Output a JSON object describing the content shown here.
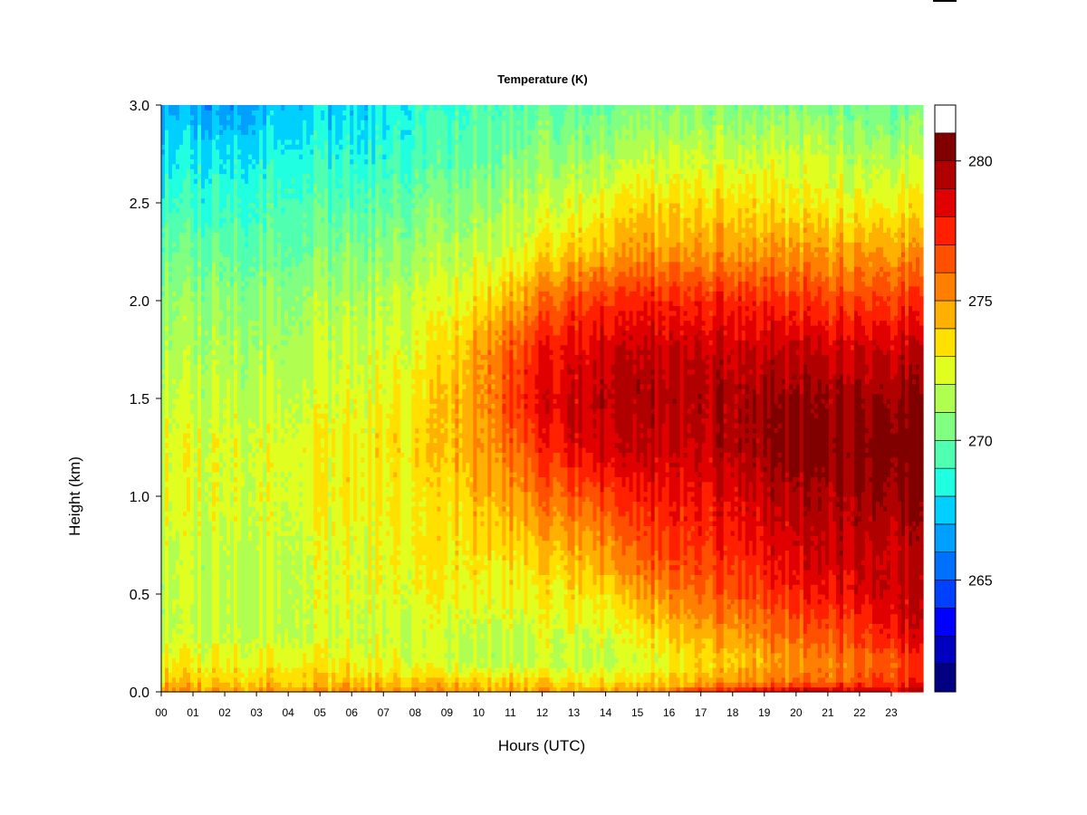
{
  "chart_data": {
    "type": "heatmap",
    "title": "Temperature (K)",
    "xlabel": "Hours (UTC)",
    "ylabel": "Height (km)",
    "x_tick_labels": [
      "00",
      "01",
      "02",
      "03",
      "04",
      "05",
      "06",
      "07",
      "08",
      "09",
      "10",
      "11",
      "12",
      "13",
      "14",
      "15",
      "16",
      "17",
      "18",
      "19",
      "20",
      "21",
      "22",
      "23"
    ],
    "y_tick_labels": [
      "0.0",
      "0.5",
      "1.0",
      "1.5",
      "2.0",
      "2.5",
      "3.0"
    ],
    "y_ticks": [
      0.0,
      0.5,
      1.0,
      1.5,
      2.0,
      2.5,
      3.0
    ],
    "xlim": [
      0,
      24
    ],
    "ylim": [
      0,
      3.0
    ],
    "colorbar": {
      "label_values": [
        265,
        270,
        275,
        280
      ],
      "tick_labels": [
        "265",
        "270",
        "275",
        "280"
      ],
      "range": [
        261,
        282
      ],
      "levels": [
        261,
        262,
        263,
        264,
        265,
        266,
        267,
        268,
        269,
        270,
        271,
        272,
        273,
        274,
        275,
        276,
        277,
        278,
        279,
        280,
        281,
        282
      ],
      "colors": [
        "#000080",
        "#0000c0",
        "#0000ff",
        "#0040ff",
        "#0070ff",
        "#00a0ff",
        "#00d0ff",
        "#20ffe0",
        "#50ffb0",
        "#80ff80",
        "#b0ff50",
        "#e0ff20",
        "#ffe000",
        "#ffb000",
        "#ff8000",
        "#ff5000",
        "#ff2000",
        "#e00000",
        "#b00000",
        "#800000"
      ]
    },
    "heights": [
      0.0,
      0.05,
      0.15,
      0.3,
      0.5,
      0.7,
      1.0,
      1.25,
      1.5,
      1.75,
      2.0,
      2.25,
      2.5,
      2.75,
      3.0
    ],
    "hours": [
      0,
      2,
      4,
      6,
      8,
      9,
      10,
      11,
      12,
      13,
      14,
      15,
      16,
      17,
      18,
      19,
      20,
      21,
      22,
      23,
      24
    ],
    "temperature": [
      [
        275.5,
        274.0,
        273.0,
        272.0,
        272.0,
        272.0,
        272.5,
        272.5,
        272.0,
        271.5,
        271.0,
        270.0,
        269.0,
        268.0,
        267.0
      ],
      [
        275.0,
        274.0,
        273.0,
        272.0,
        272.0,
        272.0,
        272.5,
        272.5,
        272.0,
        271.5,
        271.0,
        270.0,
        269.0,
        268.0,
        266.5
      ],
      [
        275.0,
        274.0,
        273.0,
        272.0,
        272.0,
        272.0,
        272.5,
        272.5,
        272.0,
        271.5,
        271.0,
        270.0,
        269.5,
        268.5,
        267.5
      ],
      [
        275.5,
        274.0,
        273.0,
        272.0,
        272.5,
        272.5,
        273.0,
        273.0,
        272.5,
        272.0,
        271.5,
        270.5,
        269.5,
        268.5,
        267.5
      ],
      [
        275.0,
        274.0,
        272.5,
        272.0,
        272.5,
        273.0,
        273.0,
        273.5,
        273.0,
        272.5,
        272.0,
        271.0,
        270.0,
        269.0,
        268.5
      ],
      [
        275.0,
        274.0,
        272.0,
        272.0,
        273.0,
        273.0,
        273.5,
        274.0,
        274.0,
        273.5,
        272.5,
        271.5,
        270.5,
        269.5,
        269.0
      ],
      [
        275.0,
        274.0,
        272.0,
        272.0,
        273.0,
        273.5,
        274.5,
        275.0,
        275.0,
        275.0,
        273.5,
        272.0,
        271.0,
        270.0,
        269.5
      ],
      [
        275.0,
        274.0,
        272.0,
        272.0,
        273.0,
        273.5,
        275.0,
        276.0,
        277.0,
        276.5,
        274.5,
        272.5,
        271.5,
        270.5,
        269.5
      ],
      [
        275.0,
        274.0,
        272.0,
        272.5,
        273.0,
        274.0,
        276.0,
        277.5,
        278.5,
        278.0,
        276.0,
        273.5,
        272.0,
        271.0,
        270.0
      ],
      [
        275.0,
        273.5,
        272.0,
        272.5,
        273.5,
        274.5,
        276.5,
        278.5,
        279.0,
        278.5,
        277.0,
        274.0,
        272.5,
        271.0,
        270.0
      ],
      [
        275.0,
        273.5,
        272.0,
        272.5,
        273.5,
        275.0,
        277.0,
        279.0,
        279.5,
        279.0,
        277.5,
        274.5,
        273.0,
        271.5,
        270.0
      ],
      [
        275.5,
        273.5,
        272.0,
        273.0,
        274.5,
        276.0,
        277.5,
        279.0,
        279.5,
        279.0,
        277.5,
        275.0,
        273.5,
        271.5,
        270.5
      ],
      [
        276.0,
        274.0,
        273.0,
        274.0,
        275.5,
        277.0,
        278.0,
        279.0,
        279.5,
        279.0,
        277.5,
        275.0,
        273.5,
        272.0,
        270.5
      ],
      [
        277.0,
        274.5,
        273.5,
        274.5,
        276.0,
        277.0,
        278.0,
        279.0,
        279.5,
        279.0,
        277.5,
        275.0,
        273.5,
        272.0,
        270.5
      ],
      [
        278.0,
        275.0,
        274.0,
        275.0,
        276.5,
        277.5,
        278.5,
        279.5,
        279.5,
        279.0,
        277.5,
        275.0,
        273.5,
        272.0,
        270.5
      ],
      [
        278.5,
        275.5,
        274.5,
        275.5,
        277.0,
        278.0,
        279.0,
        280.0,
        280.0,
        279.0,
        277.5,
        275.0,
        273.5,
        272.0,
        270.5
      ],
      [
        279.0,
        276.0,
        275.0,
        276.0,
        277.5,
        278.5,
        279.5,
        280.5,
        280.0,
        279.0,
        277.0,
        275.0,
        273.0,
        272.0,
        270.5
      ],
      [
        279.0,
        276.0,
        275.5,
        276.5,
        278.0,
        279.0,
        279.5,
        280.5,
        280.0,
        279.0,
        277.0,
        275.0,
        273.0,
        272.0,
        270.5
      ],
      [
        279.0,
        277.0,
        276.0,
        277.0,
        278.5,
        279.0,
        280.0,
        280.5,
        280.0,
        279.0,
        277.0,
        275.0,
        273.0,
        271.5,
        270.5
      ],
      [
        279.0,
        277.0,
        276.5,
        278.0,
        279.0,
        279.0,
        280.0,
        281.0,
        280.0,
        279.0,
        277.0,
        275.0,
        273.0,
        271.5,
        270.0
      ],
      [
        279.0,
        277.5,
        277.0,
        278.5,
        279.0,
        279.0,
        280.0,
        281.0,
        280.0,
        279.0,
        277.0,
        275.0,
        273.0,
        271.5,
        270.0
      ]
    ]
  }
}
